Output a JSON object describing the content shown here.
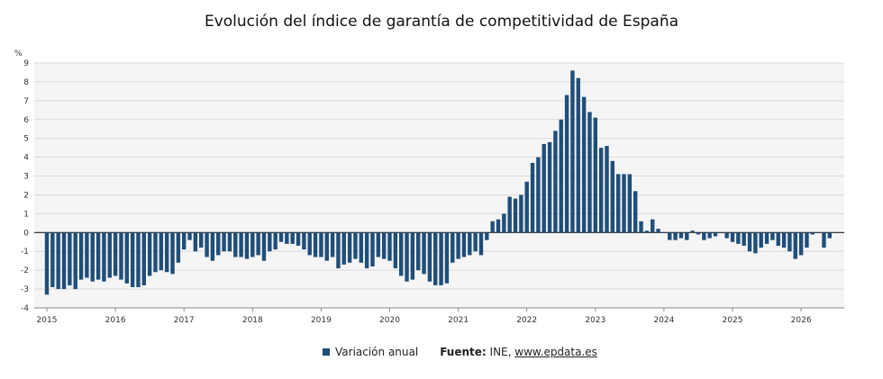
{
  "chart_data": {
    "type": "bar",
    "title": "Evolución del índice de garantía de competitividad de España",
    "ylabel": "%",
    "ylim": [
      -4,
      9
    ],
    "yticks": [
      "-4",
      "-3",
      "-2",
      "-1",
      "0",
      "1",
      "2",
      "3",
      "4",
      "5",
      "6",
      "7",
      "8",
      "9"
    ],
    "xticks": [
      "2015",
      "2016",
      "2017",
      "2018",
      "2019",
      "2020",
      "2021",
      "2022",
      "2023",
      "2024",
      "2025",
      "2026"
    ],
    "grid": true,
    "series": [
      {
        "name": "Variación anual",
        "color": "#1f4e79",
        "start": "2015-01",
        "frequency": "monthly",
        "values": [
          -3.3,
          -2.9,
          -3.0,
          -3.0,
          -2.8,
          -3.0,
          -2.5,
          -2.4,
          -2.6,
          -2.5,
          -2.6,
          -2.4,
          -2.3,
          -2.5,
          -2.7,
          -2.9,
          -2.9,
          -2.8,
          -2.3,
          -2.1,
          -2.0,
          -2.1,
          -2.2,
          -1.6,
          -0.9,
          -0.4,
          -1.0,
          -0.8,
          -1.3,
          -1.5,
          -1.2,
          -1.0,
          -1.0,
          -1.3,
          -1.3,
          -1.4,
          -1.3,
          -1.2,
          -1.5,
          -1.0,
          -0.9,
          -0.5,
          -0.6,
          -0.6,
          -0.7,
          -0.9,
          -1.2,
          -1.3,
          -1.3,
          -1.5,
          -1.3,
          -1.9,
          -1.7,
          -1.6,
          -1.4,
          -1.6,
          -1.9,
          -1.8,
          -1.3,
          -1.4,
          -1.5,
          -1.9,
          -2.3,
          -2.6,
          -2.5,
          -2.0,
          -2.2,
          -2.6,
          -2.8,
          -2.8,
          -2.7,
          -1.6,
          -1.4,
          -1.3,
          -1.2,
          -1.0,
          -1.2,
          -0.4,
          0.6,
          0.7,
          1.0,
          1.9,
          1.8,
          2.0,
          2.7,
          3.7,
          4.0,
          4.7,
          4.8,
          5.4,
          6.0,
          7.3,
          8.6,
          8.2,
          7.2,
          6.4,
          6.1,
          4.5,
          4.6,
          3.8,
          3.1,
          3.1,
          3.1,
          2.2,
          0.6,
          0.1,
          0.7,
          0.2,
          0.0,
          -0.4,
          -0.4,
          -0.3,
          -0.4,
          0.1,
          -0.1,
          -0.4,
          -0.3,
          -0.2,
          0.0,
          -0.3,
          -0.5,
          -0.6,
          -0.7,
          -1.0,
          -1.1,
          -0.8,
          -0.6,
          -0.4,
          -0.7,
          -0.8,
          -1.0,
          -1.4,
          -1.2,
          -0.8,
          -0.1,
          0.0,
          -0.8,
          -0.3
        ]
      }
    ]
  },
  "legend": {
    "label": "Variación anual",
    "color": "#1f4e79"
  },
  "source": {
    "label": "Fuente:",
    "text": "INE,",
    "link": "www.epdata.es"
  }
}
